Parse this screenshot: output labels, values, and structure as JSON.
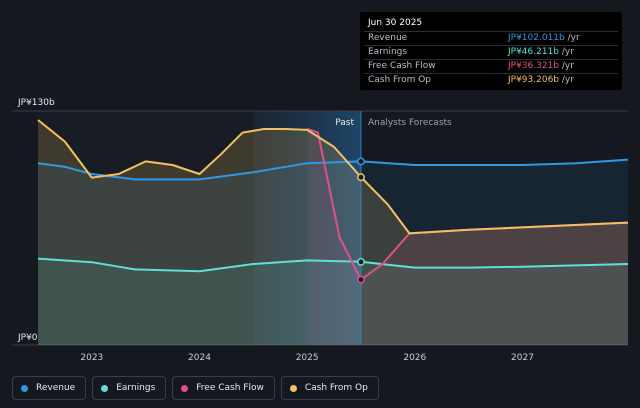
{
  "chart_data": {
    "type": "line",
    "y_axis": {
      "top_label": "JP¥130b",
      "bottom_label": "JP¥0",
      "ylim": [
        0,
        130
      ]
    },
    "x_ticks": [
      "2023",
      "2024",
      "2025",
      "2026",
      "2027"
    ],
    "divider_labels": {
      "past": "Past",
      "forecast": "Analysts Forecasts"
    },
    "divider_date": 2025.5,
    "shaded_region": [
      2024.5,
      2025.5
    ],
    "xlim": [
      2022.5,
      2027.98
    ],
    "series": [
      {
        "name": "Revenue",
        "color": "#2f98e6",
        "points": [
          [
            2022.5,
            101
          ],
          [
            2022.75,
            99
          ],
          [
            2023.0,
            95
          ],
          [
            2023.4,
            92
          ],
          [
            2023.75,
            92
          ],
          [
            2024.0,
            92
          ],
          [
            2024.5,
            96
          ],
          [
            2025.0,
            101
          ],
          [
            2025.5,
            102.0
          ],
          [
            2026.0,
            100
          ],
          [
            2026.5,
            100
          ],
          [
            2027.0,
            100
          ],
          [
            2027.5,
            101
          ],
          [
            2027.98,
            103
          ]
        ]
      },
      {
        "name": "Earnings",
        "color": "#5ee0d4",
        "points": [
          [
            2022.5,
            48
          ],
          [
            2023.0,
            46
          ],
          [
            2023.4,
            42
          ],
          [
            2024.0,
            41
          ],
          [
            2024.5,
            45
          ],
          [
            2025.0,
            47
          ],
          [
            2025.5,
            46.2
          ],
          [
            2026.0,
            43
          ],
          [
            2026.5,
            43
          ],
          [
            2027.0,
            43.5
          ],
          [
            2027.98,
            45
          ]
        ]
      },
      {
        "name": "Free Cash Flow",
        "color": "#e0508a",
        "points": [
          [
            2025.0,
            120
          ],
          [
            2025.1,
            118
          ],
          [
            2025.3,
            60
          ],
          [
            2025.5,
            36.3
          ],
          [
            2025.7,
            45
          ],
          [
            2025.95,
            62
          ],
          [
            2026.5,
            64
          ],
          [
            2027.98,
            68
          ]
        ]
      },
      {
        "name": "Cash From Op",
        "color": "#f2c061",
        "points": [
          [
            2022.5,
            125
          ],
          [
            2022.75,
            113
          ],
          [
            2023.0,
            93
          ],
          [
            2023.25,
            95
          ],
          [
            2023.5,
            102
          ],
          [
            2023.75,
            100
          ],
          [
            2024.0,
            95
          ],
          [
            2024.2,
            106
          ],
          [
            2024.4,
            118
          ],
          [
            2024.6,
            120
          ],
          [
            2024.8,
            120
          ],
          [
            2025.0,
            119.5
          ],
          [
            2025.25,
            110
          ],
          [
            2025.5,
            93.2
          ],
          [
            2025.75,
            78
          ],
          [
            2025.95,
            62
          ],
          [
            2026.5,
            64
          ],
          [
            2027.98,
            68
          ]
        ]
      }
    ],
    "tooltip": {
      "date": "Jun 30 2025",
      "rows": [
        {
          "label": "Revenue",
          "value": "JP¥102.011b",
          "unit": "/yr",
          "color": "#2f98e6"
        },
        {
          "label": "Earnings",
          "value": "JP¥46.211b",
          "unit": "/yr",
          "color": "#5ee0d4"
        },
        {
          "label": "Free Cash Flow",
          "value": "JP¥36.321b",
          "unit": "/yr",
          "color": "#e0508a"
        },
        {
          "label": "Cash From Op",
          "value": "JP¥93.206b",
          "unit": "/yr",
          "color": "#f2c061"
        }
      ]
    },
    "legend": [
      {
        "label": "Revenue",
        "color": "#2f98e6"
      },
      {
        "label": "Earnings",
        "color": "#5ee0d4"
      },
      {
        "label": "Free Cash Flow",
        "color": "#e0508a"
      },
      {
        "label": "Cash From Op",
        "color": "#f2c061"
      }
    ]
  }
}
